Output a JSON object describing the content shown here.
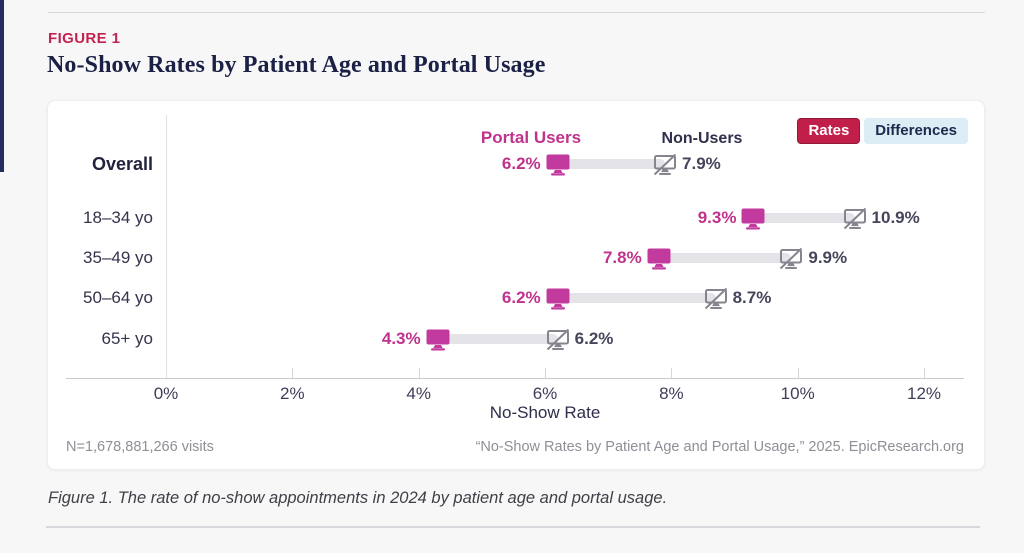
{
  "page": {
    "figure_label": "FIGURE 1",
    "title": "No-Show Rates by Patient Age and Portal Usage",
    "caption": "Figure 1. The rate of no-show appointments in 2024 by patient age and portal usage."
  },
  "legend": {
    "rates": "Rates",
    "differences": "Differences"
  },
  "chart_data": {
    "type": "dumbbell",
    "categories": [
      "Overall",
      "18–34 yo",
      "35–49 yo",
      "50–64 yo",
      "65+ yo"
    ],
    "series": [
      {
        "name": "Portal Users",
        "values": [
          6.2,
          9.3,
          7.8,
          6.2,
          4.3
        ],
        "color": "#c23a9e",
        "icon": "monitor-icon"
      },
      {
        "name": "Non-Users",
        "values": [
          7.9,
          10.9,
          9.9,
          8.7,
          6.2
        ],
        "color": "#85858f",
        "icon": "monitor-slash-icon"
      }
    ],
    "value_suffix": "%",
    "xlabel": "No-Show Rate",
    "x_ticks": [
      0,
      2,
      4,
      6,
      8,
      10,
      12
    ],
    "x_tick_labels": [
      "0%",
      "2%",
      "4%",
      "6%",
      "8%",
      "10%",
      "12%"
    ],
    "xlim": [
      0,
      12
    ],
    "grid": false,
    "legend_position": "top-right"
  },
  "footer": {
    "sample_size": "N=1,678,881,266 visits",
    "citation": "“No-Show Rates by Patient Age and Portal Usage,” 2025. EpicResearch.org"
  },
  "colors": {
    "accent_red": "#c11f4a",
    "portal_magenta": "#c23a9e",
    "non_user_gray": "#85858f",
    "differences_bg": "#dcedf5",
    "title_navy": "#1a2145",
    "bar_gray": "#e4e3e8"
  }
}
